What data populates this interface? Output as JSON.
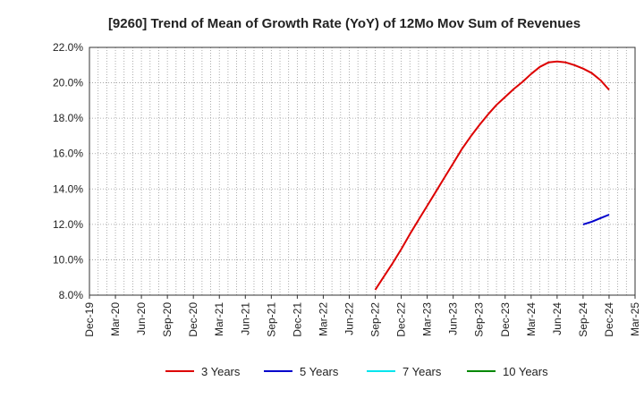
{
  "chart_data": {
    "type": "line",
    "title": "[9260]  Trend of Mean of Growth Rate (YoY) of 12Mo Mov Sum of Revenues",
    "xlabel": "",
    "ylabel": "",
    "ylim": [
      8.0,
      22.0
    ],
    "y_ticks": [
      "8.0%",
      "10.0%",
      "12.0%",
      "14.0%",
      "16.0%",
      "18.0%",
      "20.0%",
      "22.0%"
    ],
    "y_tick_values": [
      8,
      10,
      12,
      14,
      16,
      18,
      20,
      22
    ],
    "x_ticks": [
      "Dec-19",
      "Mar-20",
      "Jun-20",
      "Sep-20",
      "Dec-20",
      "Mar-21",
      "Jun-21",
      "Sep-21",
      "Dec-21",
      "Mar-22",
      "Jun-22",
      "Sep-22",
      "Dec-22",
      "Mar-23",
      "Jun-23",
      "Sep-23",
      "Dec-23",
      "Mar-24",
      "Jun-24",
      "Sep-24",
      "Dec-24",
      "Mar-25"
    ],
    "x_range_months": [
      0,
      63
    ],
    "grid": true,
    "legend_position": "bottom",
    "series": [
      {
        "name": "3 Years",
        "color": "#dd0000",
        "months": [
          33,
          34,
          35,
          36,
          37,
          38,
          39,
          40,
          41,
          42,
          43,
          44,
          45,
          46,
          47,
          48,
          49,
          50,
          51,
          52,
          53,
          54,
          55,
          56,
          57,
          58,
          59,
          60
        ],
        "values": [
          8.3,
          9.05,
          9.8,
          10.6,
          11.45,
          12.25,
          13.05,
          13.85,
          14.65,
          15.45,
          16.25,
          16.95,
          17.6,
          18.2,
          18.75,
          19.2,
          19.65,
          20.05,
          20.5,
          20.9,
          21.15,
          21.2,
          21.15,
          21.0,
          20.8,
          20.55,
          20.15,
          19.6
        ]
      },
      {
        "name": "5 Years",
        "color": "#0000cc",
        "months": [
          57,
          58,
          59,
          60
        ],
        "values": [
          12.0,
          12.15,
          12.35,
          12.55
        ]
      },
      {
        "name": "7 Years",
        "color": "#00e5ee",
        "months": [],
        "values": []
      },
      {
        "name": "10 Years",
        "color": "#008800",
        "months": [],
        "values": []
      }
    ]
  }
}
